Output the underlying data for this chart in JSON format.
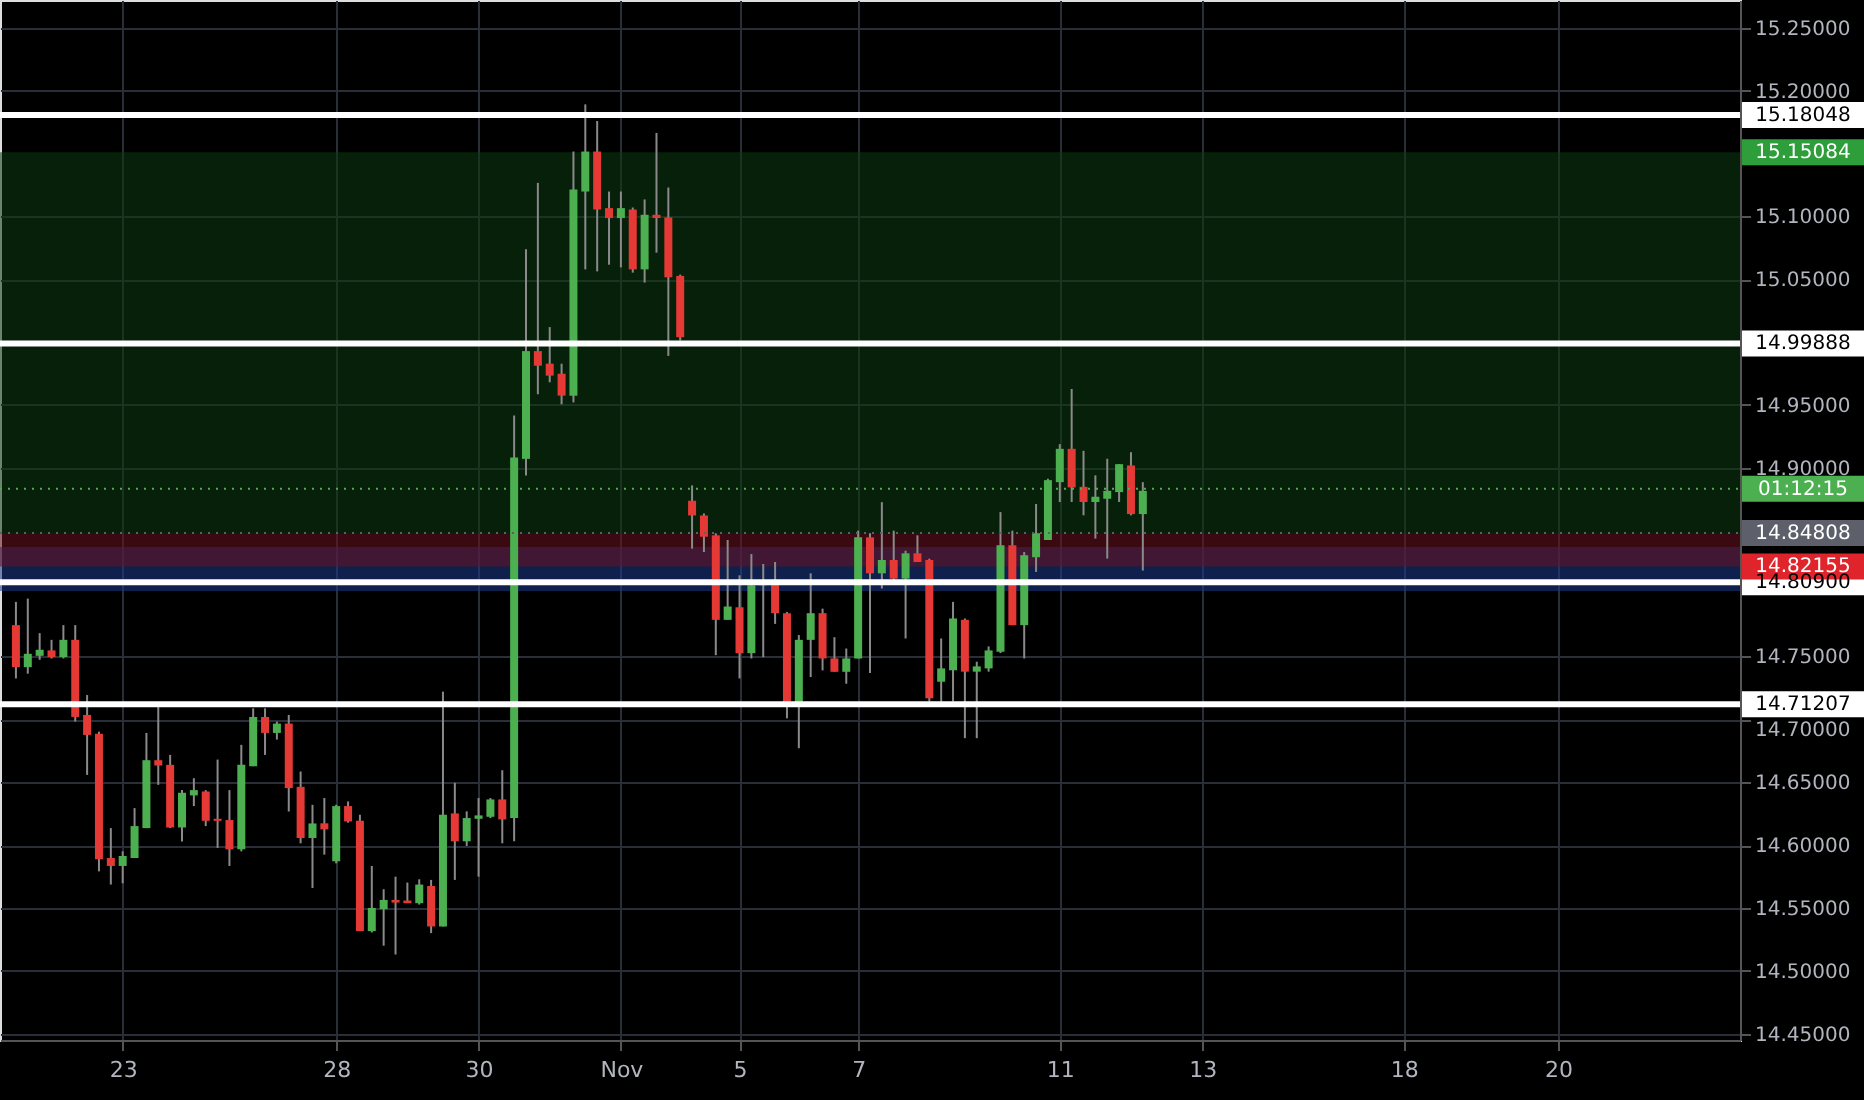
{
  "chart_data": {
    "type": "candlestick",
    "categories": [
      null,
      null,
      null,
      null,
      null,
      null,
      null,
      null,
      null,
      "23",
      null,
      null,
      null,
      null,
      null,
      null,
      null,
      null,
      null,
      null,
      null,
      null,
      null,
      null,
      null,
      null,
      null,
      "28",
      null,
      null,
      null,
      null,
      null,
      null,
      null,
      null,
      null,
      null,
      null,
      "30",
      null,
      null,
      null,
      null,
      null,
      null,
      null,
      null,
      null,
      null,
      null,
      "Nov",
      null,
      null,
      null,
      null,
      null,
      null,
      null,
      null,
      null,
      "5",
      null,
      null,
      null,
      null,
      null,
      null,
      null,
      null,
      null,
      "7",
      null,
      null,
      null,
      null,
      null,
      null,
      null,
      null,
      null,
      null,
      null,
      null,
      null,
      null,
      null,
      null,
      "11",
      null,
      null,
      null,
      null,
      null,
      null,
      null,
      null,
      null,
      null,
      null,
      "13",
      null,
      null,
      null,
      null,
      null,
      null,
      null,
      null,
      null,
      null,
      null,
      null,
      null,
      null,
      null,
      null,
      "18",
      null,
      null,
      null,
      null,
      null,
      null,
      null,
      null,
      null,
      null,
      null,
      null,
      "20",
      null,
      null,
      null,
      null,
      null,
      null,
      null,
      null,
      null,
      null,
      null,
      null,
      null,
      null
    ],
    "ohlc": [
      [
        14.7749,
        14.7934,
        14.7325,
        14.7415
      ],
      [
        14.7415,
        14.796,
        14.7363,
        14.7521
      ],
      [
        14.7505,
        14.7685,
        14.7473,
        14.7553
      ],
      [
        14.7548,
        14.7632,
        14.7484,
        14.7495
      ],
      [
        14.7495,
        14.7749,
        14.7484,
        14.7632
      ],
      [
        14.7632,
        14.7749,
        14.6982,
        14.7019
      ],
      [
        14.7035,
        14.7193,
        14.6558,
        14.6876
      ],
      [
        14.6886,
        14.6902,
        14.5791,
        14.5887
      ],
      [
        14.5897,
        14.6135,
        14.5686,
        14.5834
      ],
      [
        14.5834,
        14.595,
        14.5696,
        14.5913
      ],
      [
        14.5897,
        14.6294,
        14.5897,
        14.6151
      ],
      [
        14.6135,
        14.6892,
        14.6135,
        14.6675
      ],
      [
        14.6675,
        14.7103,
        14.6479,
        14.6633
      ],
      [
        14.6638,
        14.6717,
        14.6135,
        14.614
      ],
      [
        14.614,
        14.6437,
        14.6029,
        14.6416
      ],
      [
        14.6395,
        14.6532,
        14.631,
        14.6437
      ],
      [
        14.6426,
        14.6437,
        14.6151,
        14.6193
      ],
      [
        14.6209,
        14.668,
        14.5977,
        14.6193
      ],
      [
        14.6199,
        14.6437,
        14.5834,
        14.5966
      ],
      [
        14.5966,
        14.6797,
        14.595,
        14.6638
      ],
      [
        14.6627,
        14.7087,
        14.6627,
        14.7019
      ],
      [
        14.7019,
        14.7087,
        14.6717,
        14.6892
      ],
      [
        14.6892,
        14.6982,
        14.6839,
        14.6966
      ],
      [
        14.6966,
        14.7035,
        14.6267,
        14.6453
      ],
      [
        14.6463,
        14.6585,
        14.6014,
        14.6056
      ],
      [
        14.6056,
        14.632,
        14.5659,
        14.6172
      ],
      [
        14.6173,
        14.6374,
        14.5924,
        14.6125
      ],
      [
        14.5871,
        14.6321,
        14.5855,
        14.631
      ],
      [
        14.631,
        14.6347,
        14.6178,
        14.6188
      ],
      [
        14.6194,
        14.6241,
        14.5316,
        14.5316
      ],
      [
        14.5316,
        14.5834,
        14.5305,
        14.55
      ],
      [
        14.549,
        14.5649,
        14.52,
        14.5564
      ],
      [
        14.5564,
        14.5749,
        14.513,
        14.5543
      ],
      [
        14.5559,
        14.5702,
        14.5538,
        14.5538
      ],
      [
        14.5538,
        14.5728,
        14.5527,
        14.5686
      ],
      [
        14.5675,
        14.5723,
        14.53,
        14.5353
      ],
      [
        14.5353,
        14.722,
        14.5353,
        14.6241
      ],
      [
        14.6252,
        14.6495,
        14.5723,
        14.603
      ],
      [
        14.603,
        14.6268,
        14.5993,
        14.6215
      ],
      [
        14.6209,
        14.6374,
        14.5749,
        14.6236
      ],
      [
        14.6225,
        14.6374,
        14.6215,
        14.6363
      ],
      [
        14.6363,
        14.6595,
        14.6014,
        14.6204
      ],
      [
        14.6215,
        14.9415,
        14.603,
        14.9082
      ],
      [
        14.9071,
        15.0737,
        14.8939,
        14.9928
      ],
      [
        14.9928,
        15.1266,
        14.9585,
        14.9812
      ],
      [
        14.9828,
        15.0119,
        14.968,
        14.9733
      ],
      [
        14.9748,
        14.9828,
        14.9505,
        14.9574
      ],
      [
        14.9574,
        15.1515,
        14.952,
        15.1213
      ],
      [
        15.1197,
        15.189,
        15.0578,
        15.1515
      ],
      [
        15.1515,
        15.1758,
        15.0562,
        15.1054
      ],
      [
        15.1065,
        15.1197,
        15.0615,
        15.0986
      ],
      [
        15.0986,
        15.1197,
        15.0594,
        15.1065
      ],
      [
        15.1054,
        15.107,
        15.0552,
        15.0578
      ],
      [
        15.0578,
        15.1134,
        15.0473,
        15.1012
      ],
      [
        15.1012,
        15.1663,
        15.0711,
        15.0986
      ],
      [
        15.0991,
        15.1229,
        14.989,
        15.0515
      ],
      [
        15.0526,
        15.0536,
        15.0012,
        15.0039
      ],
      [
        14.8738,
        14.886,
        14.8357,
        14.8621
      ],
      [
        14.8621,
        14.8637,
        14.833,
        14.8452
      ],
      [
        14.8463,
        14.8479,
        14.751,
        14.7791
      ],
      [
        14.7791,
        14.8426,
        14.7791,
        14.7897
      ],
      [
        14.7891,
        14.8145,
        14.7325,
        14.7526
      ],
      [
        14.7526,
        14.8314,
        14.7484,
        14.8066
      ],
      [
        14.8066,
        14.8235,
        14.7494,
        14.8087
      ],
      [
        14.8082,
        14.8251,
        14.7759,
        14.7844
      ],
      [
        14.7844,
        14.7854,
        14.7008,
        14.7114
      ],
      [
        14.7114,
        14.767,
        14.677,
        14.7632
      ],
      [
        14.7632,
        14.8161,
        14.7336,
        14.7844
      ],
      [
        14.7844,
        14.788,
        14.7389,
        14.7484
      ],
      [
        14.7484,
        14.7653,
        14.7378,
        14.7378
      ],
      [
        14.7378,
        14.7563,
        14.7283,
        14.7484
      ],
      [
        14.7484,
        14.85,
        14.7484,
        14.8447
      ],
      [
        14.8447,
        14.8479,
        14.7368,
        14.8161
      ],
      [
        14.8161,
        14.8727,
        14.804,
        14.8267
      ],
      [
        14.8267,
        14.85,
        14.8108,
        14.8119
      ],
      [
        14.8119,
        14.8341,
        14.7643,
        14.832
      ],
      [
        14.832,
        14.8463,
        14.8251,
        14.8251
      ],
      [
        14.8267,
        14.8277,
        14.714,
        14.7167
      ],
      [
        14.7299,
        14.7643,
        14.7141,
        14.7405
      ],
      [
        14.739,
        14.7934,
        14.7141,
        14.7802
      ],
      [
        14.7791,
        14.7802,
        14.685,
        14.7379
      ],
      [
        14.7379,
        14.7458,
        14.685,
        14.7421
      ],
      [
        14.7405,
        14.758,
        14.7379,
        14.7548
      ],
      [
        14.7537,
        14.8648,
        14.7527,
        14.8384
      ],
      [
        14.8384,
        14.85,
        14.7749,
        14.7749
      ],
      [
        14.7749,
        14.833,
        14.7484,
        14.8305
      ],
      [
        14.8289,
        14.8712,
        14.8172,
        14.848
      ],
      [
        14.8426,
        14.8913,
        14.8426,
        14.8902
      ],
      [
        14.8886,
        14.9188,
        14.8728,
        14.9151
      ],
      [
        14.9151,
        14.9627,
        14.8728,
        14.8844
      ],
      [
        14.8849,
        14.9135,
        14.8622,
        14.8728
      ],
      [
        14.8728,
        14.894,
        14.8437,
        14.877
      ],
      [
        14.8754,
        14.9072,
        14.8278,
        14.8817
      ],
      [
        14.8807,
        14.9029,
        14.8728,
        14.9029
      ],
      [
        14.9019,
        14.9124,
        14.8622,
        14.8632
      ],
      [
        14.8632,
        14.8886,
        14.8183,
        14.8817
      ],
      null,
      null,
      null,
      null,
      null,
      null,
      null,
      null,
      null,
      null,
      null,
      null,
      null,
      null,
      null,
      null,
      null,
      null,
      null,
      null,
      null,
      null,
      null,
      null,
      null,
      null,
      null,
      null,
      null,
      null,
      null,
      null,
      null,
      null,
      null,
      null,
      null,
      null,
      null,
      null,
      null,
      null,
      null,
      null,
      null,
      null,
      null,
      null,
      null
    ],
    "colors": [
      "#e53935",
      "#4caf50",
      "#4caf50",
      "#e53935",
      "#4caf50",
      "#e53935",
      "#e53935",
      "#e53935",
      "#e53935",
      "#4caf50",
      "#4caf50",
      "#4caf50",
      "#e53935",
      "#e53935",
      "#4caf50",
      "#4caf50",
      "#e53935",
      "#e53935",
      "#e53935",
      "#4caf50",
      "#4caf50",
      "#e53935",
      "#4caf50",
      "#e53935",
      "#e53935",
      "#4caf50",
      "#e53935",
      "#4caf50",
      "#e53935",
      "#e53935",
      "#4caf50",
      "#4caf50",
      "#e53935",
      "#e53935",
      "#4caf50",
      "#e53935",
      "#4caf50",
      "#e53935",
      "#4caf50",
      "#4caf50",
      "#4caf50",
      "#e53935",
      "#4caf50",
      "#4caf50",
      "#e53935",
      "#e53935",
      "#e53935",
      "#4caf50",
      "#4caf50",
      "#e53935",
      "#e53935",
      "#4caf50",
      "#e53935",
      "#4caf50",
      "#e53935",
      "#e53935",
      "#e53935",
      "#e53935",
      "#e53935",
      "#e53935",
      "#4caf50",
      "#e53935",
      "#4caf50",
      "#4caf50",
      "#e53935",
      "#e53935",
      "#4caf50",
      "#4caf50",
      "#e53935",
      "#e53935",
      "#4caf50",
      "#4caf50",
      "#e53935",
      "#4caf50",
      "#e53935",
      "#4caf50",
      "#e53935",
      "#e53935",
      "#4caf50",
      "#4caf50",
      "#e53935",
      "#4caf50",
      "#4caf50",
      "#4caf50",
      "#e53935",
      "#4caf50",
      "#4caf50",
      "#4caf50",
      "#4caf50",
      "#e53935",
      "#e53935",
      "#4caf50",
      "#4caf50",
      "#4caf50",
      "#e53935",
      "#4caf50",
      null,
      null,
      null,
      null,
      null,
      null,
      null,
      null,
      null,
      null,
      null,
      null,
      null,
      null,
      null,
      null,
      null,
      null,
      null,
      null,
      null,
      null,
      null,
      null,
      null,
      null,
      null,
      null,
      null,
      null,
      null,
      null,
      null,
      null,
      null,
      null,
      null,
      null,
      null,
      null,
      null,
      null,
      null,
      null,
      null,
      null,
      null,
      null,
      null
    ],
    "ylim": [
      14.445,
      15.272
    ],
    "yticks": [
      {
        "value": 15.25,
        "label": "15.25000"
      },
      {
        "value": 15.2,
        "label": "15.20000"
      },
      {
        "value": 15.1,
        "label": "15.10000"
      },
      {
        "value": 15.05,
        "label": "15.05000"
      },
      {
        "value": 14.95,
        "label": "14.95000"
      },
      {
        "value": 14.9,
        "label": "14.90000"
      },
      {
        "value": 14.75,
        "label": "14.75000"
      },
      {
        "value": 14.7,
        "label": "14.70000"
      },
      {
        "value": 14.65,
        "label": "14.65000"
      },
      {
        "value": 14.6,
        "label": "14.60000"
      },
      {
        "value": 14.55,
        "label": "14.55000"
      },
      {
        "value": 14.5,
        "label": "14.50000"
      },
      {
        "value": 14.45,
        "label": "14.45000"
      }
    ],
    "grid": true,
    "ref_lines": [
      {
        "axis": "y",
        "value": 15.18048,
        "label": "15.18048",
        "color": "#ffffff",
        "line_style": "solid"
      },
      {
        "axis": "y",
        "value": 14.99888,
        "label": "14.99888",
        "color": "#ffffff",
        "line_style": "solid"
      },
      {
        "axis": "y",
        "value": 14.809,
        "label": "14.80900",
        "color": "#ffffff",
        "line_style": "solid"
      },
      {
        "axis": "y",
        "value": 14.71207,
        "label": "14.71207",
        "color": "#ffffff",
        "line_style": "solid"
      },
      {
        "axis": "y",
        "value": 14.8833,
        "label": "01:12:15",
        "color": "#4caf50",
        "line_style": "dotted"
      },
      {
        "axis": "y",
        "value": 14.84808,
        "label": "14.84808",
        "color": "#5d606b",
        "line_style": "dotted"
      }
    ],
    "bands": [
      {
        "axis": "y",
        "from": 14.802,
        "to": 14.837,
        "color": "#1c3a8c"
      },
      {
        "axis": "y",
        "from": 14.84808,
        "to": 15.15084,
        "label": "15.15084",
        "color": "#0d3b10"
      },
      {
        "axis": "y",
        "from": 14.82155,
        "to": 14.84808,
        "label": "14.82155",
        "color": "#6b1020"
      }
    ]
  }
}
